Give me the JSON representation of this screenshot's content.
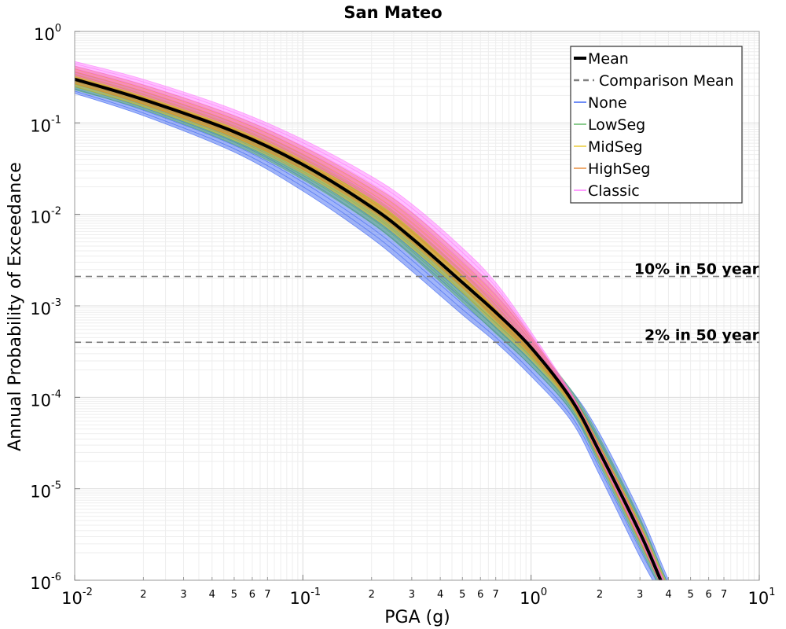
{
  "chart_data": {
    "type": "line",
    "title": "San Mateo",
    "xlabel": "PGA (g)",
    "ylabel": "Annual Probability of Exceedance",
    "x_scale": "log",
    "y_scale": "log",
    "xlim": [
      0.01,
      10
    ],
    "ylim": [
      1e-06,
      1
    ],
    "grid": true,
    "legend_position": "top-right",
    "x_major_ticks": [
      {
        "value": 0.01,
        "base": "10",
        "exp": "-2"
      },
      {
        "value": 0.1,
        "base": "10",
        "exp": "-1"
      },
      {
        "value": 1,
        "base": "10",
        "exp": "0"
      },
      {
        "value": 10,
        "base": "10",
        "exp": "1"
      }
    ],
    "x_minor_ticks": [
      {
        "value": 0.02,
        "label": "2"
      },
      {
        "value": 0.03,
        "label": "3"
      },
      {
        "value": 0.04,
        "label": "4"
      },
      {
        "value": 0.05,
        "label": "5"
      },
      {
        "value": 0.06,
        "label": "6"
      },
      {
        "value": 0.07,
        "label": "7"
      },
      {
        "value": 0.2,
        "label": "2"
      },
      {
        "value": 0.3,
        "label": "3"
      },
      {
        "value": 0.4,
        "label": "4"
      },
      {
        "value": 0.5,
        "label": "5"
      },
      {
        "value": 0.6,
        "label": "6"
      },
      {
        "value": 0.7,
        "label": "7"
      },
      {
        "value": 2,
        "label": "2"
      },
      {
        "value": 3,
        "label": "3"
      },
      {
        "value": 4,
        "label": "4"
      },
      {
        "value": 5,
        "label": "5"
      },
      {
        "value": 6,
        "label": "6"
      },
      {
        "value": 7,
        "label": "7"
      }
    ],
    "y_major_ticks": [
      {
        "value": 1,
        "base": "10",
        "exp": "0"
      },
      {
        "value": 0.1,
        "base": "10",
        "exp": "-1"
      },
      {
        "value": 0.01,
        "base": "10",
        "exp": "-2"
      },
      {
        "value": 0.001,
        "base": "10",
        "exp": "-3"
      },
      {
        "value": 0.0001,
        "base": "10",
        "exp": "-4"
      },
      {
        "value": 1e-05,
        "base": "10",
        "exp": "-5"
      },
      {
        "value": 1e-06,
        "base": "10",
        "exp": "-6"
      }
    ],
    "x": [
      0.01,
      0.02,
      0.05,
      0.1,
      0.2,
      0.3,
      0.5,
      0.7,
      1.0,
      1.5,
      2.0,
      3.0,
      3.7
    ],
    "series": [
      {
        "name": "Mean",
        "style": "solid",
        "color": "#000000",
        "values": [
          0.3,
          0.18,
          0.08,
          0.035,
          0.012,
          0.0055,
          0.0018,
          0.00085,
          0.00035,
          9.5e-05,
          2.5e-05,
          3.3e-06,
          1e-06
        ]
      },
      {
        "name": "Comparison Mean",
        "style": "dashed",
        "color": "#808080",
        "values": [
          0.3,
          0.18,
          0.08,
          0.035,
          0.012,
          0.0055,
          0.0018,
          0.00085,
          0.00035,
          9.5e-05,
          2.5e-05,
          3.3e-06,
          1e-06
        ]
      },
      {
        "name": "None",
        "style": "band",
        "color": "#1f4ff0",
        "low": [
          0.21,
          0.12,
          0.048,
          0.018,
          0.0055,
          0.0024,
          0.0008,
          0.0004,
          0.00017,
          5.5e-05,
          1.4e-05,
          1.8e-06,
          7e-07
        ],
        "high": [
          0.3,
          0.18,
          0.08,
          0.035,
          0.012,
          0.0055,
          0.0018,
          0.00085,
          0.00036,
          0.00012,
          4e-05,
          5.5e-06,
          1.6e-06
        ]
      },
      {
        "name": "LowSeg",
        "style": "band",
        "color": "#4caf50",
        "low": [
          0.23,
          0.14,
          0.058,
          0.024,
          0.008,
          0.0035,
          0.0011,
          0.0005,
          0.00022,
          7e-05,
          1.8e-05,
          2.3e-06,
          8e-07
        ],
        "high": [
          0.36,
          0.22,
          0.1,
          0.045,
          0.016,
          0.0075,
          0.0024,
          0.0011,
          0.00042,
          0.00012,
          3.6e-05,
          4.8e-06,
          1.4e-06
        ]
      },
      {
        "name": "MidSeg",
        "style": "band",
        "color": "#e6c21a",
        "low": [
          0.25,
          0.15,
          0.065,
          0.028,
          0.0095,
          0.0043,
          0.0014,
          0.0006,
          0.00026,
          8e-05,
          2e-05,
          2.6e-06,
          9e-07
        ],
        "high": [
          0.39,
          0.24,
          0.11,
          0.05,
          0.019,
          0.009,
          0.0029,
          0.0013,
          0.00045,
          0.00011,
          3e-05,
          4.2e-06,
          1.3e-06
        ]
      },
      {
        "name": "HighSeg",
        "style": "band",
        "color": "#e67e22",
        "low": [
          0.27,
          0.16,
          0.07,
          0.031,
          0.011,
          0.005,
          0.0016,
          0.0007,
          0.00029,
          8.5e-05,
          2.1e-05,
          2.7e-06,
          9e-07
        ],
        "high": [
          0.42,
          0.26,
          0.12,
          0.055,
          0.021,
          0.0105,
          0.0034,
          0.0015,
          0.00047,
          0.00011,
          3e-05,
          4e-06,
          1.2e-06
        ]
      },
      {
        "name": "Classic",
        "style": "band",
        "color": "#ff66ff",
        "low": [
          0.33,
          0.2,
          0.09,
          0.04,
          0.015,
          0.007,
          0.0022,
          0.00095,
          0.00034,
          9e-05,
          2.2e-05,
          2.8e-06,
          9e-07
        ],
        "high": [
          0.47,
          0.3,
          0.14,
          0.066,
          0.026,
          0.013,
          0.0043,
          0.0018,
          0.00052,
          0.00011,
          2.8e-05,
          3.8e-06,
          1.2e-06
        ]
      }
    ],
    "reference_lines": [
      {
        "label": "10% in 50 year",
        "y": 0.0021
      },
      {
        "label": "2% in 50 year",
        "y": 0.0004
      }
    ]
  },
  "legend": {
    "items": [
      {
        "label": "Mean",
        "color": "#000000",
        "style": "solid-thick"
      },
      {
        "label": "Comparison Mean",
        "color": "#808080",
        "style": "dashed"
      },
      {
        "label": "None",
        "color": "#1f4ff0",
        "style": "thin"
      },
      {
        "label": "LowSeg",
        "color": "#4caf50",
        "style": "thin"
      },
      {
        "label": "MidSeg",
        "color": "#e6c21a",
        "style": "thin"
      },
      {
        "label": "HighSeg",
        "color": "#e67e22",
        "style": "thin"
      },
      {
        "label": "Classic",
        "color": "#ff66ff",
        "style": "thin"
      }
    ]
  }
}
